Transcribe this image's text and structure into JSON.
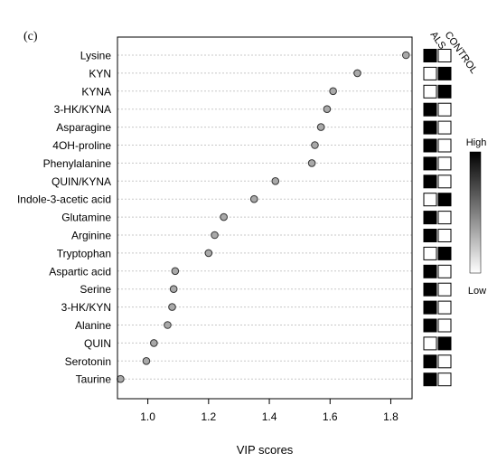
{
  "panel_label": "(c)",
  "chart_data": {
    "type": "scatter",
    "xlabel": "VIP scores",
    "xlim": [
      0.9,
      1.87
    ],
    "xticks": [
      1.0,
      1.2,
      1.4,
      1.6,
      1.8
    ],
    "xtick_labels": [
      "1.0",
      "1.2",
      "1.4",
      "1.6",
      "1.8"
    ],
    "grid": true,
    "categories": [
      "Lysine",
      "KYN",
      "KYNA",
      "3-HK/KYNA",
      "Asparagine",
      "4OH-proline",
      "Phenylalanine",
      "QUIN/KYNA",
      "Indole-3-acetic acid",
      "Glutamine",
      "Arginine",
      "Tryptophan",
      "Aspartic acid",
      "Serine",
      "3-HK/KYN",
      "Alanine",
      "QUIN",
      "Serotonin",
      "Taurine"
    ],
    "values": [
      1.85,
      1.69,
      1.61,
      1.59,
      1.57,
      1.55,
      1.54,
      1.42,
      1.35,
      1.25,
      1.22,
      1.2,
      1.09,
      1.085,
      1.08,
      1.065,
      1.02,
      0.995,
      0.91
    ],
    "marker_color": "#a9a9a9",
    "heatmap": {
      "columns": [
        "ALS",
        "CONTROL"
      ],
      "high_in": [
        "ALS",
        "CONTROL",
        "CONTROL",
        "ALS",
        "ALS",
        "ALS",
        "ALS",
        "ALS",
        "CONTROL",
        "ALS",
        "ALS",
        "CONTROL",
        "ALS",
        "ALS",
        "ALS",
        "ALS",
        "CONTROL",
        "ALS",
        "ALS"
      ],
      "high_color": "#000000",
      "low_color": "#ffffff"
    },
    "colorbar": {
      "high_label": "High",
      "low_label": "Low"
    }
  }
}
